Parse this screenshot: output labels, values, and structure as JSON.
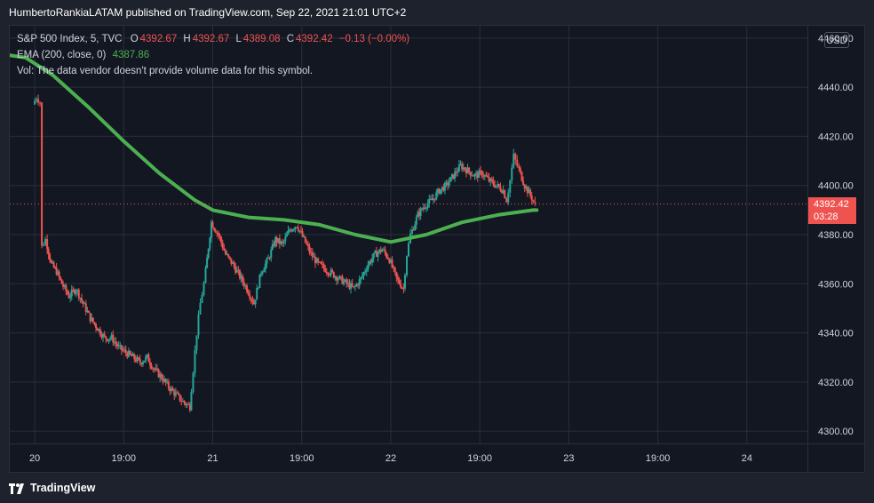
{
  "publisher_line": "HumbertoRankiaLATAM published on TradingView.com, Sep 22, 2021 21:01 UTC+2",
  "legend": {
    "symbol": "S&P 500 Index, 5, TVC",
    "o_label": "O",
    "o_value": "4392.67",
    "h_label": "H",
    "h_value": "4392.67",
    "l_label": "L",
    "l_value": "4389.08",
    "c_label": "C",
    "c_value": "4392.42",
    "change": "−0.13 (−0.00%)",
    "ema_label": "EMA (200, close, 0)",
    "ema_value": "4387.86",
    "vol_text": "Vol: The data vendor doesn't provide volume data for this symbol."
  },
  "currency_button": "USD",
  "last_price": {
    "value": "4392.42",
    "countdown": "03:28"
  },
  "footer_brand": "TradingView",
  "colors": {
    "up": "#26a69a",
    "down": "#ef5350",
    "ema": "#4caf50",
    "background": "#131722",
    "grid": "#2a2e39",
    "text": "#d1d4dc"
  },
  "chart_data": {
    "type": "candlestick",
    "symbol": "S&P 500 Index",
    "interval": "5",
    "ylim": [
      4295,
      4465
    ],
    "y_ticks": [
      "4460.00",
      "4440.00",
      "4420.00",
      "4400.00",
      "4380.00",
      "4360.00",
      "4340.00",
      "4320.00",
      "4300.00"
    ],
    "y_tick_values": [
      4460,
      4440,
      4420,
      4400,
      4380,
      4360,
      4340,
      4320,
      4300
    ],
    "x_ticks": [
      "20",
      "19:00",
      "21",
      "19:00",
      "22",
      "19:00",
      "23",
      "19:00",
      "24"
    ],
    "x_tick_positions": [
      0,
      0.5,
      1,
      1.5,
      2,
      2.5,
      3,
      3.5,
      4
    ],
    "x_range": [
      -0.14,
      4.34
    ],
    "price_path": [
      [
        0.0,
        4433
      ],
      [
        0.02,
        4436
      ],
      [
        0.04,
        4434
      ],
      [
        0.05,
        4375
      ],
      [
        0.07,
        4378
      ],
      [
        0.1,
        4368
      ],
      [
        0.13,
        4365
      ],
      [
        0.16,
        4360
      ],
      [
        0.2,
        4355
      ],
      [
        0.24,
        4358
      ],
      [
        0.28,
        4352
      ],
      [
        0.32,
        4346
      ],
      [
        0.36,
        4342
      ],
      [
        0.4,
        4338
      ],
      [
        0.44,
        4338
      ],
      [
        0.48,
        4334
      ],
      [
        0.52,
        4332
      ],
      [
        0.56,
        4330
      ],
      [
        0.6,
        4328
      ],
      [
        0.64,
        4330
      ],
      [
        0.68,
        4325
      ],
      [
        0.72,
        4322
      ],
      [
        0.76,
        4318
      ],
      [
        0.8,
        4315
      ],
      [
        0.84,
        4312
      ],
      [
        0.88,
        4310
      ],
      [
        0.9,
        4325
      ],
      [
        0.92,
        4340
      ],
      [
        0.94,
        4352
      ],
      [
        0.96,
        4360
      ],
      [
        1.0,
        4385
      ],
      [
        1.04,
        4380
      ],
      [
        1.08,
        4372
      ],
      [
        1.12,
        4368
      ],
      [
        1.16,
        4363
      ],
      [
        1.2,
        4358
      ],
      [
        1.24,
        4352
      ],
      [
        1.28,
        4365
      ],
      [
        1.32,
        4370
      ],
      [
        1.36,
        4378
      ],
      [
        1.4,
        4376
      ],
      [
        1.44,
        4382
      ],
      [
        1.48,
        4384
      ],
      [
        1.52,
        4378
      ],
      [
        1.56,
        4372
      ],
      [
        1.6,
        4368
      ],
      [
        1.64,
        4366
      ],
      [
        1.68,
        4364
      ],
      [
        1.72,
        4362
      ],
      [
        1.76,
        4360
      ],
      [
        1.8,
        4358
      ],
      [
        1.84,
        4362
      ],
      [
        1.88,
        4368
      ],
      [
        1.92,
        4372
      ],
      [
        1.96,
        4374
      ],
      [
        2.0,
        4370
      ],
      [
        2.04,
        4362
      ],
      [
        2.08,
        4358
      ],
      [
        2.1,
        4372
      ],
      [
        2.12,
        4380
      ],
      [
        2.16,
        4388
      ],
      [
        2.2,
        4392
      ],
      [
        2.24,
        4394
      ],
      [
        2.28,
        4398
      ],
      [
        2.32,
        4400
      ],
      [
        2.36,
        4404
      ],
      [
        2.4,
        4408
      ],
      [
        2.44,
        4406
      ],
      [
        2.48,
        4404
      ],
      [
        2.52,
        4405
      ],
      [
        2.56,
        4402
      ],
      [
        2.6,
        4400
      ],
      [
        2.64,
        4398
      ],
      [
        2.66,
        4394
      ],
      [
        2.68,
        4402
      ],
      [
        2.7,
        4412
      ],
      [
        2.72,
        4408
      ],
      [
        2.76,
        4400
      ],
      [
        2.8,
        4395
      ],
      [
        2.82,
        4392
      ]
    ],
    "ema_series": {
      "name": "EMA (200, close, 0)",
      "x": [
        -0.14,
        -0.05,
        0.1,
        0.3,
        0.5,
        0.7,
        0.9,
        1.0,
        1.2,
        1.4,
        1.6,
        1.8,
        2.0,
        2.2,
        2.4,
        2.6,
        2.8,
        2.82
      ],
      "y": [
        4453,
        4452,
        4445,
        4432,
        4418,
        4405,
        4394,
        4390,
        4387,
        4386,
        4384,
        4380,
        4377,
        4380,
        4385,
        4388,
        4390,
        4390
      ]
    },
    "last_close": 4392.42
  }
}
